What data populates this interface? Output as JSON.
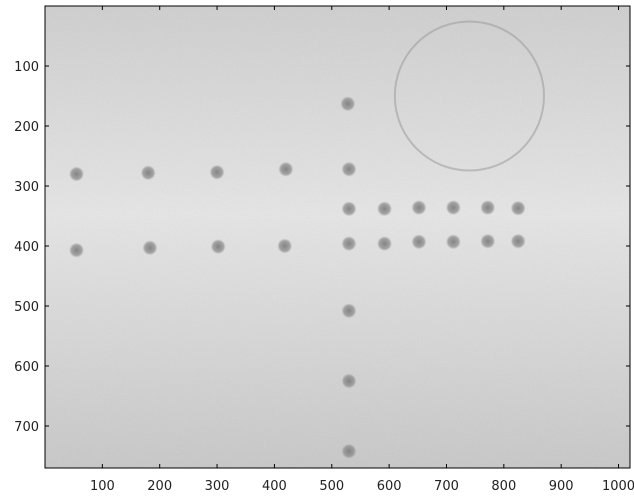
{
  "image": {
    "description_kind": "grayscale x-ray style image of a plate with a grid of dark circular markers and a faint ring in upper right",
    "colors": {
      "background_top": "#cfcfcf",
      "background_mid": "#e6e6e6",
      "background_bottom": "#c8c8c8",
      "marker": "#8b8b8b",
      "ring": "#9a9a9a",
      "axis": "#000000"
    }
  },
  "axes": {
    "x_ticks": [
      "100",
      "200",
      "300",
      "400",
      "500",
      "600",
      "700",
      "800",
      "900",
      "1000"
    ],
    "y_ticks": [
      "100",
      "200",
      "300",
      "400",
      "500",
      "600",
      "700"
    ],
    "x_range": [
      0,
      1020
    ],
    "y_range": [
      0,
      770
    ]
  },
  "markers": [
    {
      "x": 55,
      "y": 280
    },
    {
      "x": 180,
      "y": 278
    },
    {
      "x": 300,
      "y": 277
    },
    {
      "x": 420,
      "y": 272
    },
    {
      "x": 530,
      "y": 272
    },
    {
      "x": 528,
      "y": 163
    },
    {
      "x": 55,
      "y": 407
    },
    {
      "x": 183,
      "y": 403
    },
    {
      "x": 302,
      "y": 401
    },
    {
      "x": 418,
      "y": 400
    },
    {
      "x": 530,
      "y": 338
    },
    {
      "x": 592,
      "y": 338
    },
    {
      "x": 652,
      "y": 336
    },
    {
      "x": 712,
      "y": 336
    },
    {
      "x": 772,
      "y": 336
    },
    {
      "x": 825,
      "y": 337
    },
    {
      "x": 530,
      "y": 396
    },
    {
      "x": 592,
      "y": 396
    },
    {
      "x": 652,
      "y": 393
    },
    {
      "x": 712,
      "y": 393
    },
    {
      "x": 772,
      "y": 392
    },
    {
      "x": 825,
      "y": 392
    },
    {
      "x": 530,
      "y": 508
    },
    {
      "x": 530,
      "y": 625
    },
    {
      "x": 530,
      "y": 742
    }
  ],
  "ring": {
    "cx": 740,
    "cy": 150,
    "r": 130
  }
}
